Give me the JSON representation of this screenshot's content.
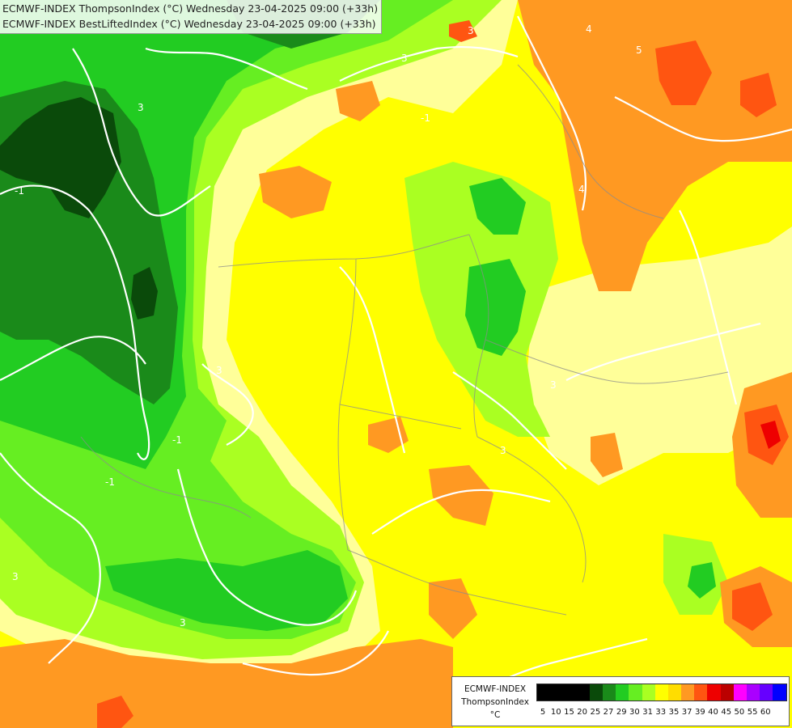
{
  "header": {
    "line1": "ECMWF-INDEX ThompsonIndex (°C) Wednesday 23-04-2025 09:00 (+33h)",
    "line2": "ECMWF-INDEX BestLiftedIndex (°C) Wednesday 23-04-2025 09:00 (+33h)"
  },
  "legend": {
    "title1": "ECMWF-INDEX",
    "title2": "ThompsonIndex",
    "unit": "°C",
    "ticks": [
      "5",
      "10",
      "15",
      "20",
      "25",
      "27",
      "29",
      "30",
      "31",
      "33",
      "35",
      "37",
      "39",
      "40",
      "45",
      "50",
      "55",
      "60"
    ],
    "colors": [
      "#000000",
      "#000000",
      "#000000",
      "#000000",
      "#0a4a0a",
      "#1a8a1a",
      "#22cc22",
      "#66ee22",
      "#aaff22",
      "#ffff00",
      "#ffdd00",
      "#ff9922",
      "#ff5511",
      "#ee0000",
      "#bb0000",
      "#ff00ff",
      "#aa00ff",
      "#6600ff",
      "#0000ff"
    ]
  },
  "contour_labels": [
    "3",
    "-1",
    "3",
    "3",
    "3",
    "3",
    "5",
    "4",
    "3",
    "-1",
    "4",
    "3",
    "3",
    "-1",
    "-1"
  ],
  "colors": {
    "dark_green": "#0a4a0a",
    "green": "#1a8a1a",
    "bright_green": "#22cc22",
    "light_green": "#66ee22",
    "yellow_green": "#aaff22",
    "pale_yellow": "#ffff99",
    "yellow": "#ffff00",
    "orange": "#ff9922",
    "red": "#ff5511",
    "deep_red": "#ee0000"
  }
}
